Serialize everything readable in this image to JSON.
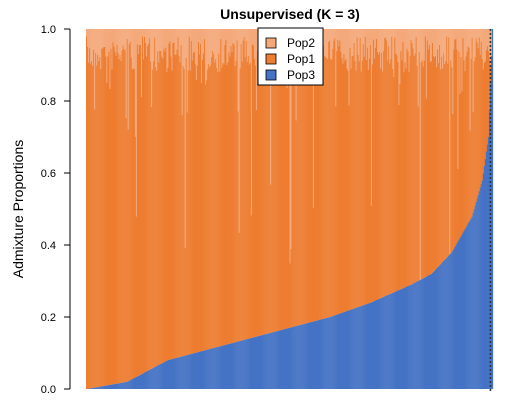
{
  "chart_data": {
    "type": "bar",
    "subtype": "stacked-100",
    "title": "Unsupervised (K = 3)",
    "xlabel": "",
    "ylabel": "Admixture Proportions",
    "ylim": [
      0,
      1
    ],
    "yticks": [
      "0.0",
      "0.2",
      "0.4",
      "0.6",
      "0.8",
      "1.0"
    ],
    "legend": {
      "placement": "top-center"
    },
    "n_individuals": 400,
    "sort_order": "ascending Pop3 proportion",
    "reference_line": {
      "style": "dotted",
      "color": "#333333",
      "at_individual": 398
    },
    "series": [
      {
        "name": "Pop2",
        "color": "#F4A97B"
      },
      {
        "name": "Pop1",
        "color": "#ED7D31"
      },
      {
        "name": "Pop3",
        "color": "#4472C4"
      }
    ],
    "pop3_quantiles": {
      "fraction": [
        0.0,
        0.1,
        0.2,
        0.3,
        0.4,
        0.5,
        0.6,
        0.7,
        0.8,
        0.85,
        0.9,
        0.95,
        0.975,
        0.99,
        1.0
      ],
      "value": [
        0.0,
        0.02,
        0.08,
        0.11,
        0.14,
        0.17,
        0.2,
        0.24,
        0.29,
        0.32,
        0.38,
        0.48,
        0.58,
        0.7,
        1.0
      ]
    },
    "pop2_typical_range": [
      0.02,
      0.12
    ],
    "pop2_spike_max": 0.75
  }
}
